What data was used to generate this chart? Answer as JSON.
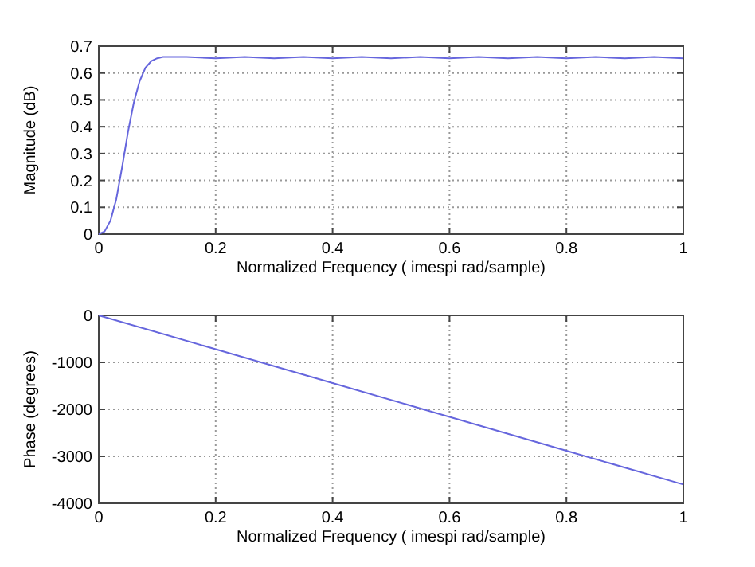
{
  "chart_data": [
    {
      "type": "line",
      "xlabel": "Normalized Frequency ( imespi rad/sample)",
      "ylabel": "Magnitude (dB)",
      "xlim": [
        0,
        1
      ],
      "ylim": [
        0,
        0.7
      ],
      "xticks": [
        0,
        0.2,
        0.4,
        0.6,
        0.8,
        1
      ],
      "yticks": [
        0,
        0.1,
        0.2,
        0.3,
        0.4,
        0.5,
        0.6,
        0.7
      ],
      "grid": true,
      "series": [
        {
          "color": "#6666dd",
          "x": [
            0,
            0.01,
            0.02,
            0.03,
            0.04,
            0.05,
            0.06,
            0.07,
            0.08,
            0.09,
            0.1,
            0.11,
            0.12,
            0.15,
            0.2,
            0.25,
            0.3,
            0.35,
            0.4,
            0.45,
            0.5,
            0.55,
            0.6,
            0.65,
            0.7,
            0.75,
            0.8,
            0.85,
            0.9,
            0.95,
            1
          ],
          "values": [
            0,
            0.01,
            0.05,
            0.13,
            0.25,
            0.38,
            0.49,
            0.57,
            0.62,
            0.645,
            0.655,
            0.66,
            0.66,
            0.66,
            0.655,
            0.66,
            0.655,
            0.66,
            0.655,
            0.66,
            0.655,
            0.66,
            0.655,
            0.66,
            0.655,
            0.66,
            0.655,
            0.66,
            0.655,
            0.66,
            0.655
          ]
        }
      ]
    },
    {
      "type": "line",
      "xlabel": "Normalized Frequency ( imespi rad/sample)",
      "ylabel": "Phase (degrees)",
      "xlim": [
        0,
        1
      ],
      "ylim": [
        -4000,
        0
      ],
      "xticks": [
        0,
        0.2,
        0.4,
        0.6,
        0.8,
        1
      ],
      "yticks": [
        -4000,
        -3000,
        -2000,
        -1000,
        0
      ],
      "grid": true,
      "series": [
        {
          "color": "#6666dd",
          "x": [
            0,
            0.2,
            0.4,
            0.6,
            0.8,
            1
          ],
          "values": [
            0,
            -720,
            -1440,
            -2160,
            -2880,
            -3600
          ]
        }
      ]
    }
  ]
}
